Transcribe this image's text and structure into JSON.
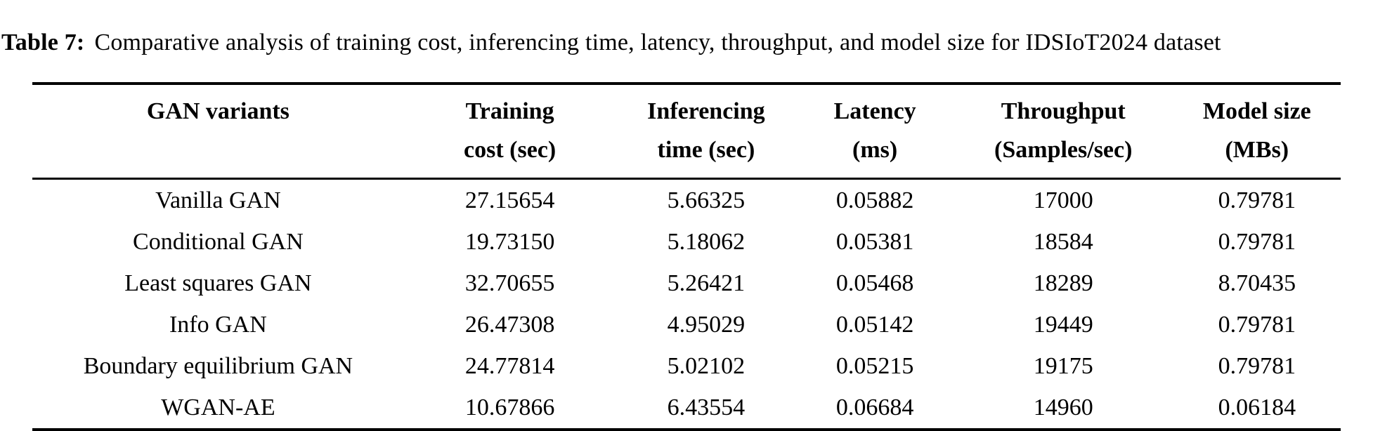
{
  "caption": {
    "label": "Table 7:",
    "text": "Comparative analysis of training cost, inferencing time, latency, throughput, and model size for IDSIoT2024 dataset"
  },
  "table": {
    "columns": [
      {
        "line1": "GAN variants",
        "line2": ""
      },
      {
        "line1": "Training",
        "line2": "cost (sec)"
      },
      {
        "line1": "Inferencing",
        "line2": "time (sec)"
      },
      {
        "line1": "Latency",
        "line2": "(ms)"
      },
      {
        "line1": "Throughput",
        "line2": "(Samples/sec)"
      },
      {
        "line1": "Model size",
        "line2": "(MBs)"
      }
    ],
    "rows": [
      {
        "variant": "Vanilla GAN",
        "training_cost_sec": "27.15654",
        "inferencing_time_sec": "5.66325",
        "latency_ms": "0.05882",
        "throughput_samples_per_sec": "17000",
        "model_size_mbs": "0.79781"
      },
      {
        "variant": "Conditional GAN",
        "training_cost_sec": "19.73150",
        "inferencing_time_sec": "5.18062",
        "latency_ms": "0.05381",
        "throughput_samples_per_sec": "18584",
        "model_size_mbs": "0.79781"
      },
      {
        "variant": "Least squares GAN",
        "training_cost_sec": "32.70655",
        "inferencing_time_sec": "5.26421",
        "latency_ms": "0.05468",
        "throughput_samples_per_sec": "18289",
        "model_size_mbs": "8.70435"
      },
      {
        "variant": "Info GAN",
        "training_cost_sec": "26.47308",
        "inferencing_time_sec": "4.95029",
        "latency_ms": "0.05142",
        "throughput_samples_per_sec": "19449",
        "model_size_mbs": "0.79781"
      },
      {
        "variant": "Boundary equilibrium GAN",
        "training_cost_sec": "24.77814",
        "inferencing_time_sec": "5.02102",
        "latency_ms": "0.05215",
        "throughput_samples_per_sec": "19175",
        "model_size_mbs": "0.79781"
      },
      {
        "variant": "WGAN-AE",
        "training_cost_sec": "10.67866",
        "inferencing_time_sec": "6.43554",
        "latency_ms": "0.06684",
        "throughput_samples_per_sec": "14960",
        "model_size_mbs": "0.06184"
      }
    ]
  },
  "colors": {
    "background": "#ffffff",
    "text": "#000000",
    "rule": "#000000"
  }
}
